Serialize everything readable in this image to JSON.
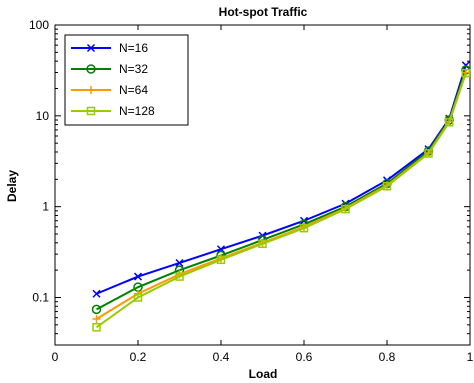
{
  "chart_data": {
    "type": "line",
    "title": "Hot-spot Traffic",
    "xlabel": "Load",
    "ylabel": "Delay",
    "xlim": [
      0,
      1
    ],
    "ylim": [
      0.03,
      100
    ],
    "yscale": "log",
    "xticks": [
      "0",
      "0.2",
      "0.4",
      "0.6",
      "0.8",
      "1"
    ],
    "yticks": [
      "0.1",
      "1",
      "10",
      "100"
    ],
    "legend_position": "top-left",
    "x": [
      0.1,
      0.2,
      0.3,
      0.4,
      0.5,
      0.6,
      0.7,
      0.8,
      0.9,
      0.95,
      0.99
    ],
    "series": [
      {
        "name": "N=16",
        "color": "#0000ff",
        "marker": "x",
        "values": [
          0.11,
          0.17,
          0.24,
          0.34,
          0.48,
          0.7,
          1.08,
          1.95,
          4.3,
          9.3,
          36
        ]
      },
      {
        "name": "N=32",
        "color": "#008000",
        "marker": "circle",
        "values": [
          0.074,
          0.13,
          0.2,
          0.29,
          0.43,
          0.64,
          1.0,
          1.8,
          4.1,
          9.0,
          32
        ]
      },
      {
        "name": "N=64",
        "color": "#ff9900",
        "marker": "plus",
        "values": [
          0.058,
          0.11,
          0.18,
          0.27,
          0.4,
          0.6,
          0.96,
          1.72,
          3.9,
          8.7,
          30
        ]
      },
      {
        "name": "N=128",
        "color": "#99cc00",
        "marker": "square",
        "values": [
          0.047,
          0.1,
          0.17,
          0.26,
          0.39,
          0.58,
          0.94,
          1.68,
          3.85,
          8.5,
          29.5
        ]
      }
    ]
  }
}
